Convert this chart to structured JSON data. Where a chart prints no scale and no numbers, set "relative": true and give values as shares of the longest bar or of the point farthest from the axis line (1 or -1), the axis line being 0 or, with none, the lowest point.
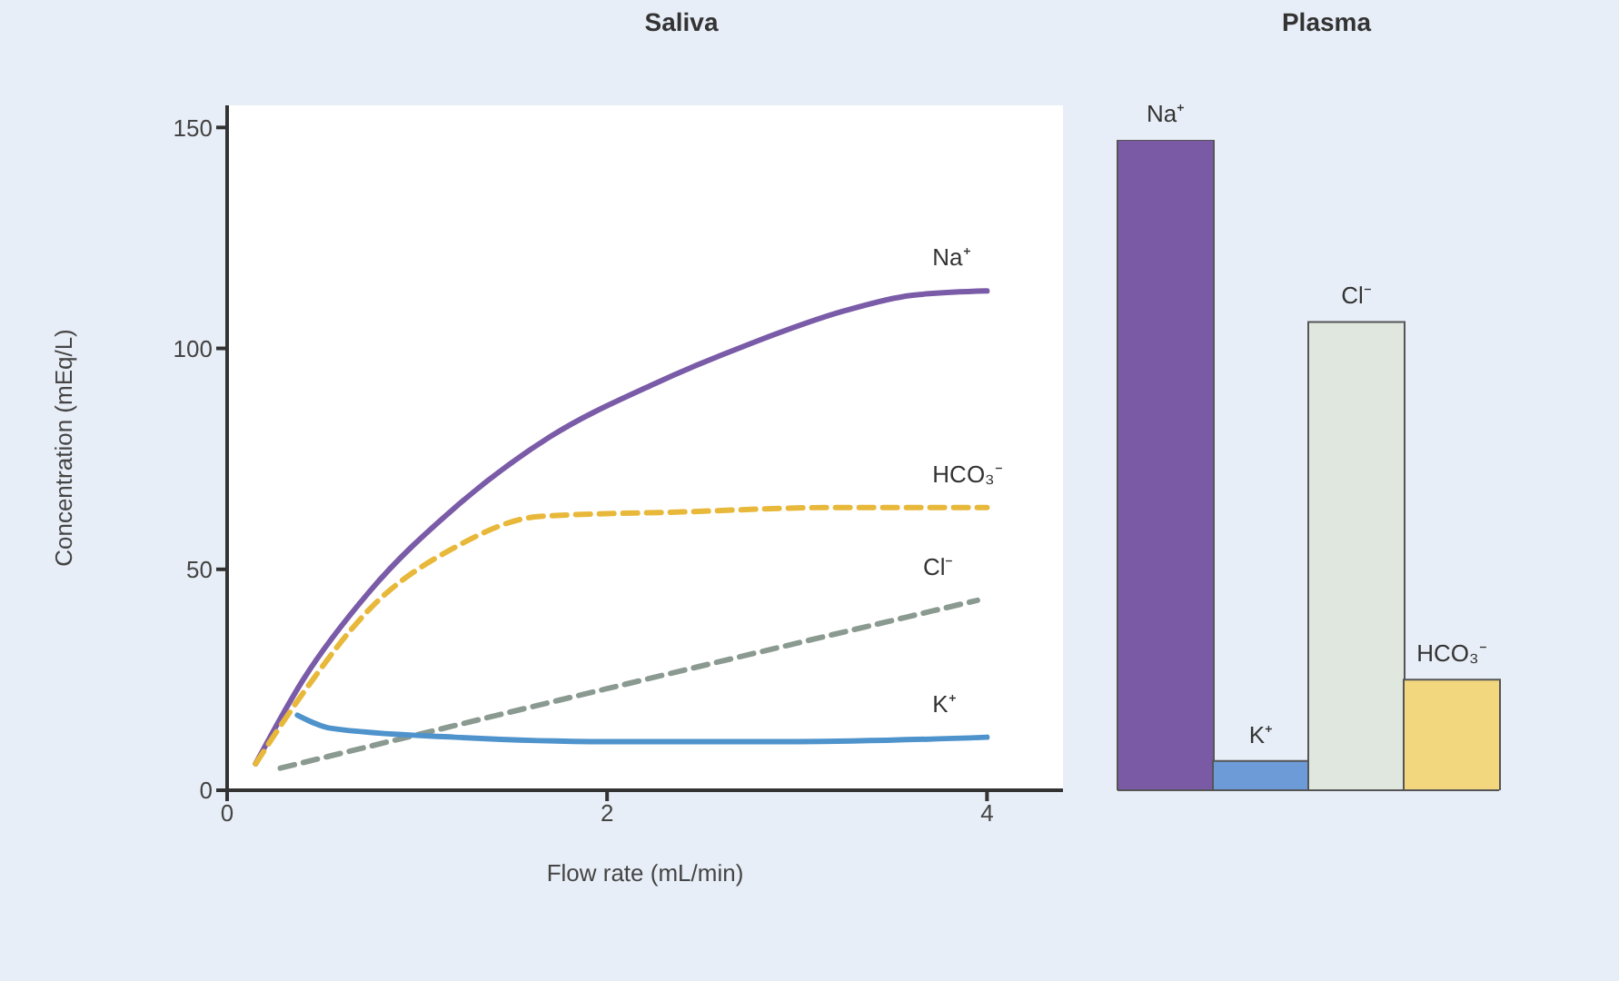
{
  "chart_data": [
    {
      "type": "line",
      "title": "Saliva",
      "xlabel": "Flow rate (mL/min)",
      "ylabel": "Concentration (mEq/L)",
      "xlim": [
        0,
        4.4
      ],
      "xticks": [
        0,
        2,
        4
      ],
      "ylim": [
        0,
        155
      ],
      "yticks": [
        0,
        50,
        100,
        150
      ],
      "grid": false,
      "marker": "none",
      "series": [
        {
          "name": "Na⁺",
          "color": "#7a5ba8",
          "line_style": "solid",
          "x": [
            0.15,
            0.4,
            0.75,
            1.2,
            1.7,
            2.25,
            2.75,
            3.25,
            3.6,
            4
          ],
          "values": [
            6,
            25,
            45,
            64,
            80,
            92,
            101,
            108.5,
            112,
            113
          ]
        },
        {
          "name": "HCO₃⁻",
          "color": "#e8b83a",
          "line_style": "dashed",
          "x": [
            0.15,
            0.4,
            0.75,
            1.2,
            1.65,
            2.4,
            3.2,
            4
          ],
          "values": [
            6,
            22,
            41,
            55,
            62,
            63,
            64,
            64
          ]
        },
        {
          "name": "Cl⁻",
          "color": "#8a9a90",
          "line_style": "dashed",
          "x": [
            0.28,
            2,
            3.95
          ],
          "values": [
            5,
            23,
            43
          ]
        },
        {
          "name": "K⁺",
          "color": "#4f93cc",
          "line_style": "solid",
          "x": [
            0.37,
            0.55,
            1.2,
            2,
            3,
            4
          ],
          "values": [
            17,
            14,
            12,
            11,
            11,
            12
          ]
        }
      ]
    },
    {
      "type": "bar",
      "title": "Plasma",
      "relative": true,
      "categories": [
        "Na⁺",
        "K⁺",
        "Cl⁻",
        "HCO₃⁻"
      ],
      "values": [
        1,
        0.045,
        0.72,
        0.17
      ],
      "colors": [
        "#7b5aa5",
        "#6c9bd8",
        "#dfe7df",
        "#f3d77f"
      ]
    }
  ]
}
